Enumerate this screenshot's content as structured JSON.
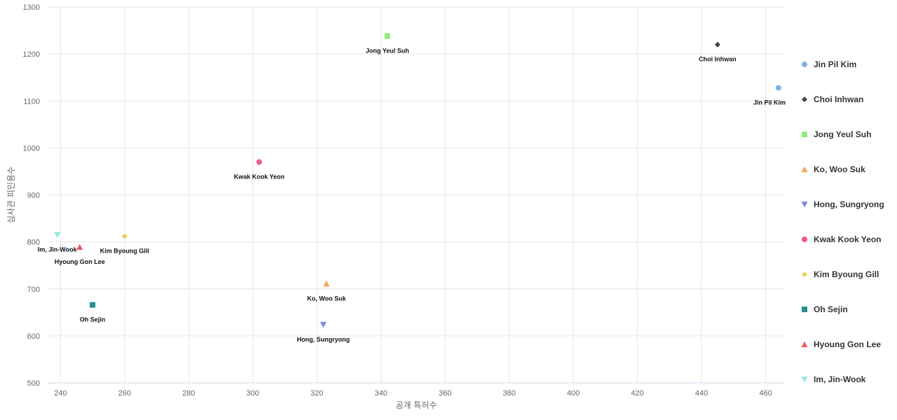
{
  "chart_data": {
    "type": "scatter",
    "title": "",
    "xlabel": "공개 특허수",
    "ylabel": "심사관 피인용수",
    "xlim": [
      236,
      466
    ],
    "ylim": [
      500,
      1300
    ],
    "x_ticks": [
      240,
      260,
      280,
      300,
      320,
      340,
      360,
      380,
      400,
      420,
      440,
      460
    ],
    "y_ticks": [
      500,
      600,
      700,
      800,
      900,
      1000,
      1100,
      1200,
      1300
    ],
    "grid": true,
    "legend_position": "right",
    "series": [
      {
        "name": "Jin Pil Kim",
        "marker": "circle",
        "color": "#7cb5ec",
        "x": 464,
        "y": 1128,
        "label": "Jin Pil Kim"
      },
      {
        "name": "Choi Inhwan",
        "marker": "diamond",
        "color": "#434348",
        "x": 445,
        "y": 1220,
        "label": "Choi Inhwan"
      },
      {
        "name": "Jong Yeul Suh",
        "marker": "square",
        "color": "#90ed7d",
        "x": 342,
        "y": 1238,
        "label": "Jong Yeul Suh"
      },
      {
        "name": "Ko, Woo Suk",
        "marker": "triangle",
        "color": "#f7a35c",
        "x": 323,
        "y": 711,
        "label": "Ko, Woo Suk"
      },
      {
        "name": "Hong, Sungryong",
        "marker": "triangle-down",
        "color": "#8085e9",
        "x": 322,
        "y": 624,
        "label": "Hong, Sungryong"
      },
      {
        "name": "Kwak Kook Yeon",
        "marker": "circle",
        "color": "#f15c80",
        "x": 302,
        "y": 970,
        "label": "Kwak Kook Yeon"
      },
      {
        "name": "Kim Byoung Gill",
        "marker": "diamond",
        "color": "#e4d354",
        "x": 260,
        "y": 812,
        "label": "Kim Byoung Gill"
      },
      {
        "name": "Oh Sejin",
        "marker": "square",
        "color": "#2b908f",
        "x": 250,
        "y": 666,
        "label": "Oh Sejin"
      },
      {
        "name": "Hyoung Gon Lee",
        "marker": "triangle",
        "color": "#f45b5b",
        "x": 246,
        "y": 789,
        "label": "Hyoung Gon Lee"
      },
      {
        "name": "Im, Jin-Wook",
        "marker": "triangle-down",
        "color": "#91e8e1",
        "x": 239,
        "y": 815,
        "label": "Im, Jin-Wook"
      }
    ]
  }
}
